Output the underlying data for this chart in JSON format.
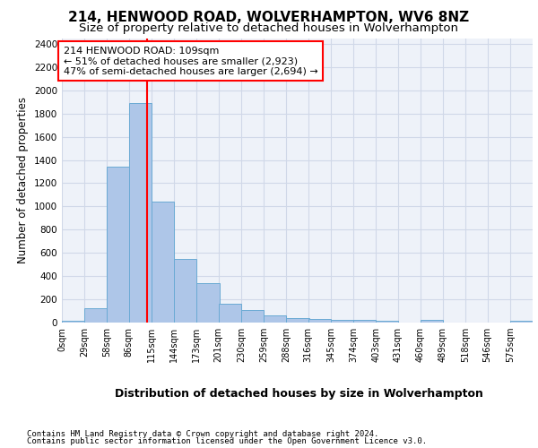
{
  "title1": "214, HENWOOD ROAD, WOLVERHAMPTON, WV6 8NZ",
  "title2": "Size of property relative to detached houses in Wolverhampton",
  "xlabel": "Distribution of detached houses by size in Wolverhampton",
  "ylabel": "Number of detached properties",
  "bar_color": "#aec6e8",
  "bar_edgecolor": "#6aaad4",
  "vline_color": "red",
  "vline_x": 109,
  "annotation_line1": "214 HENWOOD ROAD: 109sqm",
  "annotation_line2": "← 51% of detached houses are smaller (2,923)",
  "annotation_line3": "47% of semi-detached houses are larger (2,694) →",
  "footnote1": "Contains HM Land Registry data © Crown copyright and database right 2024.",
  "footnote2": "Contains public sector information licensed under the Open Government Licence v3.0.",
  "bins": [
    0,
    29,
    58,
    86,
    115,
    144,
    173,
    201,
    230,
    259,
    288,
    316,
    345,
    374,
    403,
    431,
    460,
    489,
    518,
    546,
    575
  ],
  "bin_labels": [
    "0sqm",
    "29sqm",
    "58sqm",
    "86sqm",
    "115sqm",
    "144sqm",
    "173sqm",
    "201sqm",
    "230sqm",
    "259sqm",
    "288sqm",
    "316sqm",
    "345sqm",
    "374sqm",
    "403sqm",
    "431sqm",
    "460sqm",
    "489sqm",
    "518sqm",
    "546sqm",
    "575sqm"
  ],
  "bar_heights": [
    15,
    120,
    1340,
    1890,
    1040,
    545,
    340,
    160,
    110,
    65,
    40,
    30,
    25,
    20,
    15,
    2,
    25,
    2,
    2,
    2,
    15
  ],
  "ylim": [
    0,
    2450
  ],
  "yticks": [
    0,
    200,
    400,
    600,
    800,
    1000,
    1200,
    1400,
    1600,
    1800,
    2000,
    2200,
    2400
  ],
  "grid_color": "#d0d8e8",
  "bg_color": "#eef2f9",
  "fig_bg": "#ffffff",
  "title1_fontsize": 11,
  "title2_fontsize": 9.5,
  "xlabel_fontsize": 9,
  "ylabel_fontsize": 8.5,
  "annot_fontsize": 8,
  "footnote_fontsize": 6.5
}
